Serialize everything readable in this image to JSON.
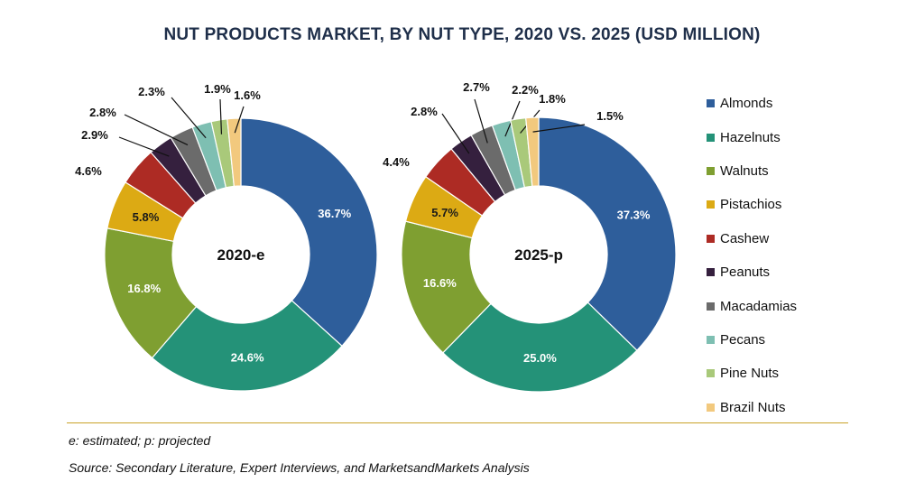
{
  "title": "NUT PRODUCTS MARKET, BY NUT TYPE, 2020 VS. 2025 (USD MILLION)",
  "colors": [
    "#2e5e9b",
    "#249278",
    "#7f9f31",
    "#dcaa14",
    "#ad2b24",
    "#35203e",
    "#6b6b6b",
    "#7ebfb2",
    "#a9c97a",
    "#f2c97e"
  ],
  "chart_data": [
    {
      "type": "pie",
      "center_label": "2020-e",
      "categories": [
        "Almonds",
        "Hazelnuts",
        "Walnuts",
        "Pistachios",
        "Cashew",
        "Peanuts",
        "Macadamias",
        "Pecans",
        "Pine Nuts",
        "Brazil Nuts"
      ],
      "values": [
        36.7,
        24.6,
        16.8,
        5.8,
        4.6,
        2.9,
        2.8,
        2.3,
        1.9,
        1.6
      ],
      "labels": [
        "36.7%",
        "24.6%",
        "16.8%",
        "5.8%",
        "4.6%",
        "2.9%",
        "2.8%",
        "2.3%",
        "1.9%",
        "1.6%"
      ]
    },
    {
      "type": "pie",
      "center_label": "2025-p",
      "categories": [
        "Almonds",
        "Hazelnuts",
        "Walnuts",
        "Pistachios",
        "Cashew",
        "Peanuts",
        "Macadamias",
        "Pecans",
        "Pine Nuts",
        "Brazil Nuts"
      ],
      "values": [
        37.3,
        25.0,
        16.6,
        5.7,
        4.4,
        2.8,
        2.7,
        2.2,
        1.8,
        1.5
      ],
      "labels": [
        "37.3%",
        "25.0%",
        "16.6%",
        "5.7%",
        "4.4%",
        "2.8%",
        "2.7%",
        "2.2%",
        "1.8%",
        "1.5%"
      ]
    }
  ],
  "legend": [
    "Almonds",
    "Hazelnuts",
    "Walnuts",
    "Pistachios",
    "Cashew",
    "Peanuts",
    "Macadamias",
    "Pecans",
    "Pine Nuts",
    "Brazil Nuts"
  ],
  "footnotes": {
    "estimate": "e: estimated; p: projected",
    "source": "Source: Secondary Literature, Expert Interviews, and MarketsandMarkets Analysis"
  }
}
